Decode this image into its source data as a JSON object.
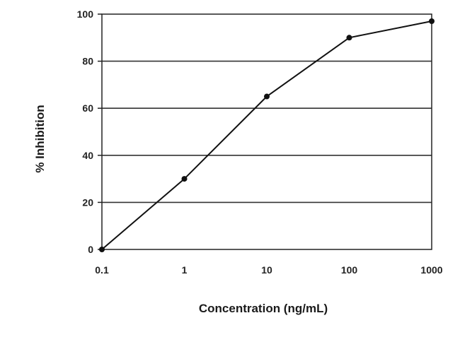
{
  "chart_data": {
    "type": "line",
    "title": "",
    "xlabel": "Concentration (ng/mL)",
    "ylabel": "% Inhibition",
    "x_scale": "log",
    "xlim": [
      0.1,
      1000
    ],
    "ylim": [
      0,
      100
    ],
    "x_ticks": [
      0.1,
      1,
      10,
      100,
      1000
    ],
    "x_tick_labels": [
      "0.1",
      "1",
      "10",
      "100",
      "1000"
    ],
    "y_ticks": [
      0,
      20,
      40,
      60,
      80,
      100
    ],
    "y_tick_labels": [
      "0",
      "20",
      "40",
      "60",
      "80",
      "100"
    ],
    "grid": "horizontal",
    "legend": "none",
    "series": [
      {
        "x": [
          0.1,
          1,
          10,
          100,
          1000
        ],
        "y": [
          0,
          30,
          65,
          90,
          97
        ],
        "color": "#111111"
      }
    ]
  }
}
